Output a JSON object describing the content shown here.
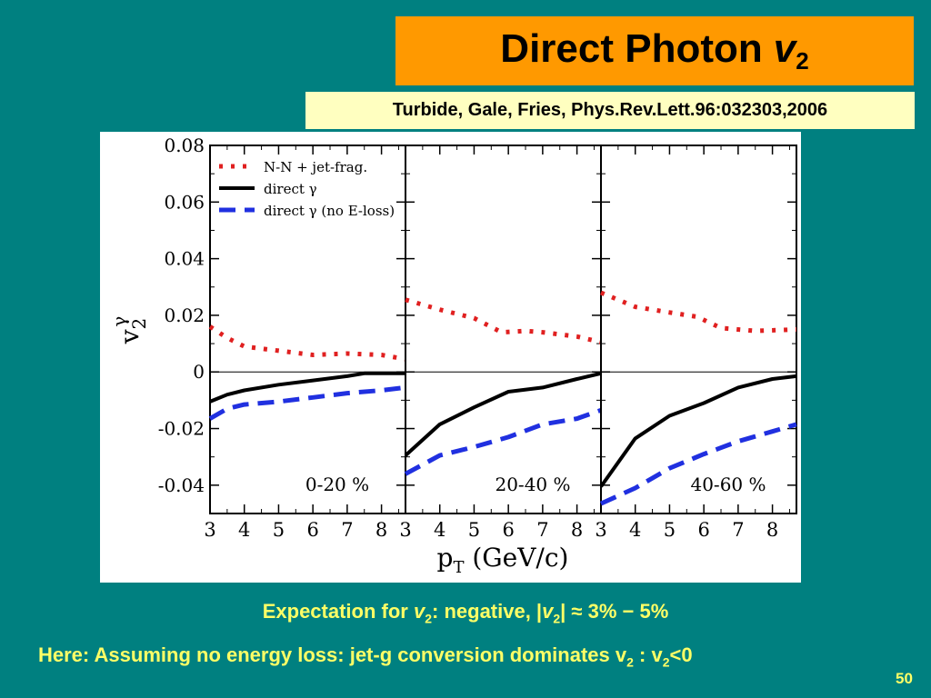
{
  "slide": {
    "title_main": "Direct Photon",
    "title_var": "v",
    "title_sub": "2",
    "reference": "Turbide, Gale, Fries, Phys.Rev.Lett.96:032303,2006",
    "expectation_prefix": "Expectation for ",
    "expectation_var": "v",
    "expectation_sub": "2",
    "expectation_mid": ":  negative, |",
    "expectation_abs_sub": "2",
    "expectation_tail": "| ≈ 3% − 5%",
    "here_text": "Here: Assuming no energy loss:  jet-g conversion dominates v",
    "here_sub1": "2",
    "here_mid": " : v",
    "here_sub2": "2",
    "here_end": "<0",
    "page_number": "50",
    "colors": {
      "background": "#008080",
      "title_box": "#FF9900",
      "ref_box": "#FFFFC0",
      "text_yellow": "#FFFF66"
    }
  },
  "chart_data": {
    "type": "line",
    "ylabel": "v",
    "ylabel_sub": "2",
    "ylabel_sup": "γ",
    "xlabel": "p",
    "xlabel_sub": "T",
    "xlabel_unit": "(GeV/c)",
    "ylim": [
      -0.05,
      0.08
    ],
    "xlim": [
      3,
      8.7
    ],
    "yticks": [
      0.08,
      0.06,
      0.04,
      0.02,
      0,
      -0.02,
      -0.04
    ],
    "ytick_labels": [
      "0.08",
      "0.06",
      "0.04",
      "0.02",
      "0",
      "-0.02",
      "-0.04"
    ],
    "xticks": [
      3,
      4,
      5,
      6,
      7,
      8
    ],
    "xtick_labels": [
      "3",
      "4",
      "5",
      "6",
      "7",
      "8"
    ],
    "legend": [
      {
        "label": "N-N + jet-frag.",
        "style": "dotted",
        "color": "#E02020"
      },
      {
        "label": "direct γ",
        "style": "solid",
        "color": "#000000"
      },
      {
        "label": "direct γ (no E-loss)",
        "style": "dashed",
        "color": "#2030E0"
      }
    ],
    "panels": [
      {
        "label": "0-20 %",
        "series": [
          {
            "style": "dotted",
            "x": [
              3,
              3.5,
              4,
              5,
              6,
              7,
              8,
              8.7
            ],
            "y": [
              0.016,
              0.012,
              0.009,
              0.0075,
              0.006,
              0.0065,
              0.006,
              0.0045
            ]
          },
          {
            "style": "solid",
            "x": [
              3,
              3.5,
              4,
              5,
              6,
              7,
              7.5,
              8,
              8.7
            ],
            "y": [
              -0.0105,
              -0.008,
              -0.0065,
              -0.0045,
              -0.003,
              -0.0015,
              -0.0005,
              -0.0005,
              -0.0005
            ]
          },
          {
            "style": "dashed",
            "x": [
              3,
              3.5,
              4,
              5,
              6,
              7,
              8,
              8.7
            ],
            "y": [
              -0.0165,
              -0.013,
              -0.0115,
              -0.0105,
              -0.009,
              -0.0075,
              -0.0065,
              -0.0055
            ]
          }
        ]
      },
      {
        "label": "20-40 %",
        "series": [
          {
            "style": "dotted",
            "x": [
              3,
              4,
              5,
              5.8,
              6.5,
              7,
              8,
              8.7
            ],
            "y": [
              0.0255,
              0.022,
              0.019,
              0.014,
              0.0145,
              0.014,
              0.0125,
              0.0105
            ]
          },
          {
            "style": "solid",
            "x": [
              3,
              4,
              5,
              6,
              7,
              8,
              8.7
            ],
            "y": [
              -0.0295,
              -0.0185,
              -0.0125,
              -0.007,
              -0.0055,
              -0.0025,
              -0.0005
            ]
          },
          {
            "style": "dashed",
            "x": [
              3,
              4,
              5,
              6,
              7,
              8,
              8.7
            ],
            "y": [
              -0.036,
              -0.0295,
              -0.0265,
              -0.023,
              -0.0185,
              -0.0165,
              -0.0135
            ]
          }
        ]
      },
      {
        "label": "40-60 %",
        "series": [
          {
            "style": "dotted",
            "x": [
              3,
              4,
              5,
              5.8,
              6.5,
              7.5,
              8.7
            ],
            "y": [
              0.028,
              0.023,
              0.021,
              0.0195,
              0.0155,
              0.0145,
              0.015
            ]
          },
          {
            "style": "solid",
            "x": [
              3,
              4,
              5,
              6,
              7,
              8,
              8.7
            ],
            "y": [
              -0.0405,
              -0.0235,
              -0.0155,
              -0.011,
              -0.0055,
              -0.0025,
              -0.0015
            ]
          },
          {
            "style": "dashed",
            "x": [
              3,
              4,
              5,
              6,
              7,
              8,
              8.7
            ],
            "y": [
              -0.0465,
              -0.041,
              -0.034,
              -0.029,
              -0.0245,
              -0.021,
              -0.0185
            ]
          }
        ]
      }
    ]
  }
}
